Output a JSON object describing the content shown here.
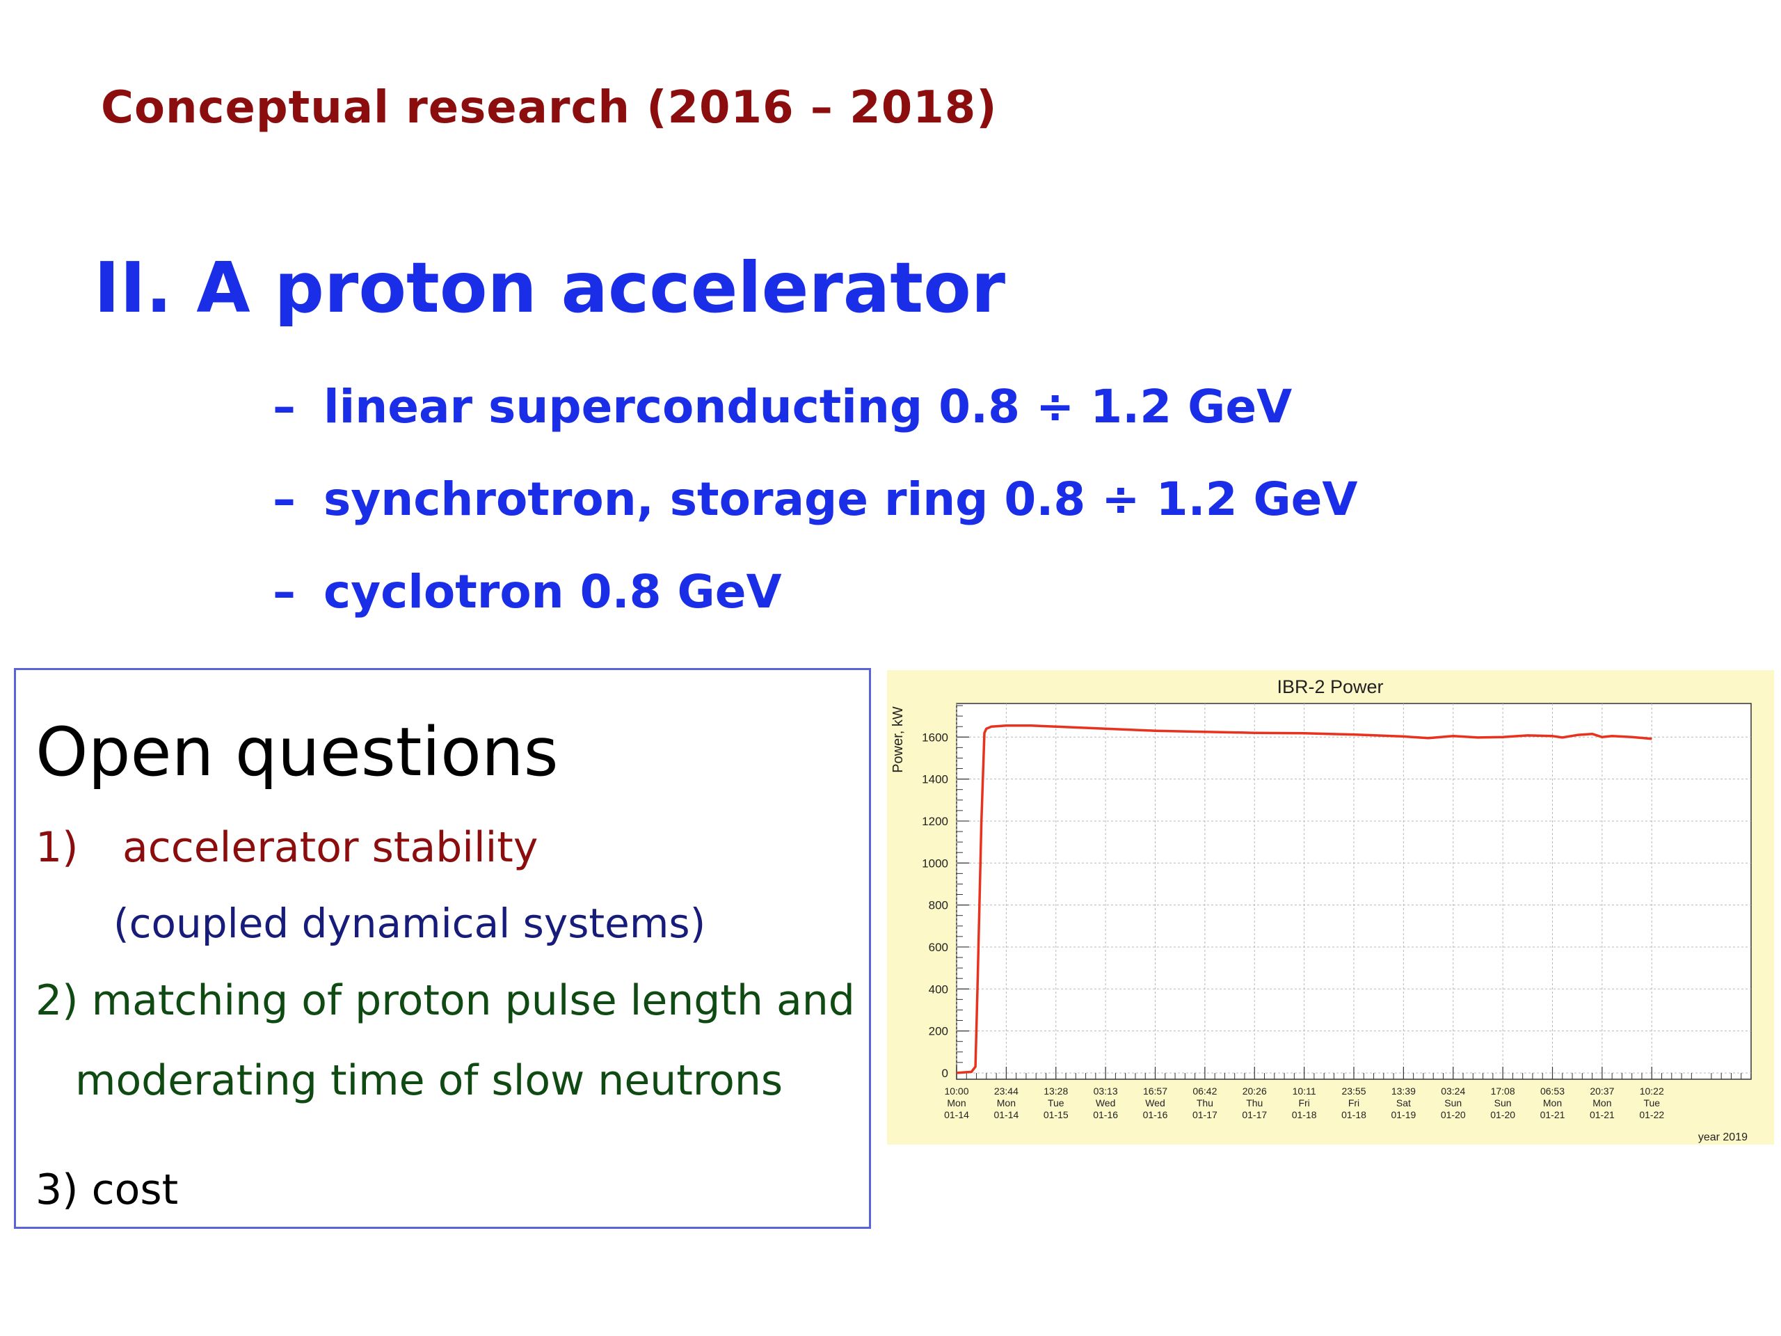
{
  "slide": {
    "heading": "Conceptual research (2016 – 2018)",
    "section_title": "II. A proton accelerator",
    "bullets": [
      {
        "dash": "–",
        "text": "linear superconducting 0.8 ÷ 1.2 GeV"
      },
      {
        "dash": "–",
        "text": "synchrotron, storage ring 0.8 ÷ 1.2 GeV"
      },
      {
        "dash": "–",
        "text": "cyclotron 0.8 GeV"
      }
    ]
  },
  "open_questions": {
    "title": "Open questions",
    "q1_number": "1)",
    "q1_text": "accelerator stability",
    "q1_sub": "(coupled dynamical systems)",
    "q2_text": "2) matching of proton pulse length and",
    "q2_cont": "moderating time of slow neutrons",
    "q3_text": "3) cost"
  },
  "colors": {
    "heading": "#8b0d0d",
    "section": "#1a2ee8",
    "q1": "#8b0d0d",
    "q1_sub": "#171b7a",
    "q2": "#0e4a12",
    "box_border": "#5a63d8",
    "chart_background": "#fdf8c8",
    "series": "#e8321e"
  },
  "chart_data": {
    "type": "line",
    "title": "IBR-2 Power",
    "ylabel": "Power, kW",
    "xlabel": "year 2019",
    "ylim": [
      -30,
      1760
    ],
    "xlim": [
      0,
      16
    ],
    "grid": true,
    "y_ticks": [
      0,
      200,
      400,
      600,
      800,
      1000,
      1200,
      1400,
      1600
    ],
    "x_ticks": [
      [
        "10:00",
        "Mon",
        "01-14"
      ],
      [
        "23:44",
        "Mon",
        "01-14"
      ],
      [
        "13:28",
        "Tue",
        "01-15"
      ],
      [
        "03:13",
        "Wed",
        "01-16"
      ],
      [
        "16:57",
        "Wed",
        "01-16"
      ],
      [
        "06:42",
        "Thu",
        "01-17"
      ],
      [
        "20:26",
        "Thu",
        "01-17"
      ],
      [
        "10:11",
        "Fri",
        "01-18"
      ],
      [
        "23:55",
        "Fri",
        "01-18"
      ],
      [
        "13:39",
        "Sat",
        "01-19"
      ],
      [
        "03:24",
        "Sun",
        "01-20"
      ],
      [
        "17:08",
        "Sun",
        "01-20"
      ],
      [
        "06:53",
        "Mon",
        "01-21"
      ],
      [
        "20:37",
        "Mon",
        "01-21"
      ],
      [
        "10:22",
        "Tue",
        "01-22"
      ]
    ],
    "series": [
      {
        "color": "#e8321e",
        "x": [
          0,
          0.3,
          0.38,
          0.42,
          0.5,
          0.56,
          0.6,
          0.7,
          1.0,
          1.5,
          2.0,
          3.0,
          4.0,
          5.0,
          6.0,
          7.0,
          8.0,
          9.0,
          9.5,
          10.0,
          10.5,
          11.0,
          11.5,
          12.0,
          12.2,
          12.5,
          12.8,
          13.0,
          13.2,
          13.6,
          14.0
        ],
        "y": [
          0,
          5,
          30,
          400,
          1200,
          1620,
          1640,
          1650,
          1655,
          1655,
          1650,
          1640,
          1630,
          1625,
          1620,
          1618,
          1612,
          1603,
          1595,
          1605,
          1598,
          1600,
          1608,
          1605,
          1598,
          1610,
          1615,
          1600,
          1605,
          1600,
          1592
        ]
      }
    ]
  }
}
